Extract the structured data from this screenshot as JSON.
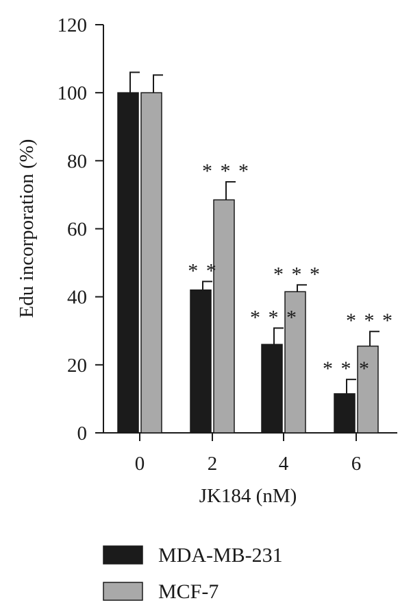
{
  "chart_data": {
    "type": "bar",
    "xlabel": "JK184 (nM)",
    "ylabel": "Edu incorporation (%)",
    "categories": [
      "0",
      "2",
      "4",
      "6"
    ],
    "ylim": [
      0,
      120
    ],
    "yticks": [
      0,
      20,
      40,
      60,
      80,
      100,
      120
    ],
    "grid": false,
    "legend_position": "bottom",
    "series": [
      {
        "name": "MDA-MB-231",
        "color": "#1b1b1b",
        "values": [
          100,
          42,
          26,
          11.5
        ],
        "errors": [
          6,
          2.5,
          4.8,
          4.2
        ],
        "significance": [
          "",
          "**",
          "***",
          "***"
        ]
      },
      {
        "name": "MCF-7",
        "color": "#a9a9a9",
        "values": [
          100,
          68.5,
          41.5,
          25.5
        ],
        "errors": [
          5.2,
          5.3,
          2.0,
          4.3
        ],
        "significance": [
          "",
          "***",
          "***",
          "***"
        ]
      }
    ]
  }
}
